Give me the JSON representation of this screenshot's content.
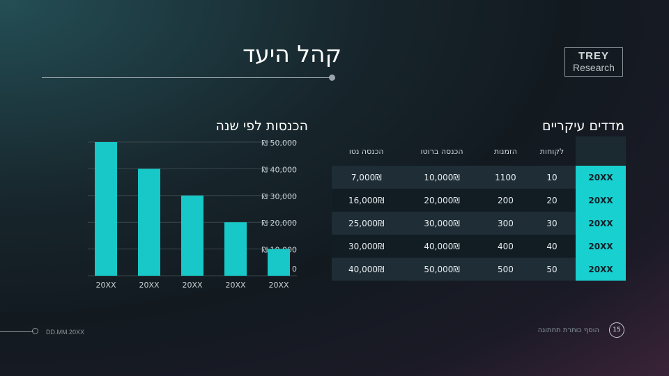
{
  "slide": {
    "title": "קהל היעד",
    "logo": {
      "line1": "TREY",
      "line2": "Research"
    },
    "footer_date": "DD.MM.20XX",
    "footer_text": "הוסף כותרת תחתונה",
    "page_number": "15"
  },
  "chart_section": {
    "title": "הכנסות לפי שנה"
  },
  "table_section": {
    "title": "מדדים עיקריים",
    "headers": [
      "לקוחות",
      "הזמנות",
      "הכנסה ברוטו",
      "הכנסה נטו"
    ],
    "rows": [
      {
        "year": "20XX",
        "customers": "10",
        "orders": "1100",
        "gross": "10,000₪",
        "net": "7,000₪"
      },
      {
        "year": "20XX",
        "customers": "20",
        "orders": "200",
        "gross": "20,000₪",
        "net": "16,000₪"
      },
      {
        "year": "20XX",
        "customers": "30",
        "orders": "300",
        "gross": "30,000₪",
        "net": "25,000₪"
      },
      {
        "year": "20XX",
        "customers": "40",
        "orders": "400",
        "gross": "40,000₪",
        "net": "30,000₪"
      },
      {
        "year": "20XX",
        "customers": "50",
        "orders": "500",
        "gross": "50,000₪",
        "net": "40,000₪"
      }
    ]
  },
  "colors": {
    "accent": "#18d0d0",
    "bar": "#18c7c7"
  },
  "chart_data": {
    "type": "bar",
    "categories": [
      "20XX",
      "20XX",
      "20XX",
      "20XX",
      "20XX"
    ],
    "values": [
      50000,
      40000,
      30000,
      20000,
      10000
    ],
    "ylim": [
      0,
      50000
    ],
    "yticks": [
      {
        "value": 50000,
        "label": "₪ 50,000"
      },
      {
        "value": 40000,
        "label": "₪ 40,000"
      },
      {
        "value": 30000,
        "label": "₪ 30,000"
      },
      {
        "value": 20000,
        "label": "₪ 20,000"
      },
      {
        "value": 10000,
        "label": "₪ 10,000"
      },
      {
        "value": 0,
        "label": "₪ 0"
      }
    ],
    "grid": true
  }
}
